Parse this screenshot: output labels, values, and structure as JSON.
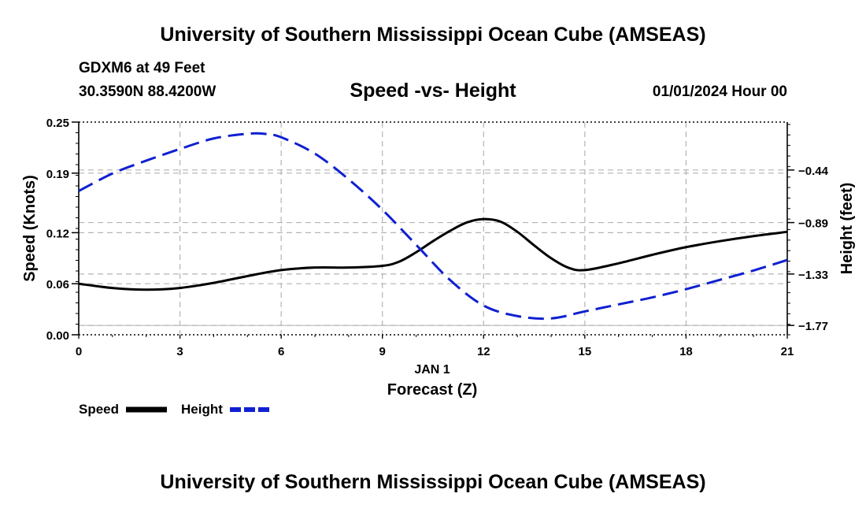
{
  "header": {
    "title": "University of Southern Mississippi Ocean Cube (AMSEAS)",
    "station": "GDXM6 at 49 Feet",
    "location": "30.3590N  88.4200W",
    "datetime": "01/01/2024 Hour 00"
  },
  "footer": {
    "title": "University of Southern Mississippi Ocean Cube (AMSEAS)"
  },
  "colors": {
    "speed": "#000000",
    "height": "#1020d0",
    "grid": "#b4b4b4"
  },
  "chart_data": {
    "type": "line",
    "title": "Speed -vs- Height",
    "xlabel": "Forecast (Z)",
    "x_date_label": "JAN 1",
    "ylabel": "Speed (Knots)",
    "y2label": "Height (feet)",
    "xlim": [
      0,
      21
    ],
    "ylim": [
      0,
      0.25
    ],
    "y2lim": [
      -1.85,
      -0.03
    ],
    "x_ticks": [
      0,
      3,
      6,
      9,
      12,
      15,
      18,
      21
    ],
    "x_tick_labels": [
      "0",
      "3",
      "6",
      "9",
      "12",
      "15",
      "18",
      "21"
    ],
    "y_ticks": [
      0,
      0.06,
      0.12,
      0.19,
      0.25
    ],
    "y_tick_labels": [
      "0.00",
      "0.06",
      "0.12",
      "0.19",
      "0.25"
    ],
    "y2_ticks": [
      -0.44,
      -0.89,
      -1.33,
      -1.77
    ],
    "y2_tick_labels": [
      "-0.44",
      "-0.89",
      "-1.33",
      "-1.77"
    ],
    "legend": {
      "placement": "bottom-left",
      "speed_label": "Speed",
      "height_label": "Height"
    },
    "series": [
      {
        "name": "Speed",
        "axis": "left",
        "style": "solid",
        "x": [
          0,
          1,
          2,
          3,
          4,
          5,
          6,
          7,
          8,
          9,
          9.5,
          10,
          10.5,
          11,
          11.5,
          12,
          12.5,
          13,
          13.5,
          14,
          14.5,
          15,
          16,
          17,
          18,
          19,
          20,
          21
        ],
        "values": [
          0.06,
          0.055,
          0.053,
          0.055,
          0.061,
          0.069,
          0.076,
          0.079,
          0.079,
          0.081,
          0.086,
          0.097,
          0.11,
          0.122,
          0.132,
          0.136,
          0.133,
          0.121,
          0.105,
          0.09,
          0.079,
          0.076,
          0.084,
          0.094,
          0.103,
          0.11,
          0.116,
          0.121
        ]
      },
      {
        "name": "Height",
        "axis": "right",
        "style": "dashed",
        "x": [
          0,
          1,
          2,
          3,
          4,
          5,
          5.5,
          6,
          7,
          8,
          9,
          10,
          11,
          12,
          13,
          14,
          15,
          16,
          17,
          18,
          19,
          20,
          21
        ],
        "values": [
          -0.62,
          -0.47,
          -0.36,
          -0.26,
          -0.17,
          -0.13,
          -0.13,
          -0.16,
          -0.3,
          -0.52,
          -0.78,
          -1.08,
          -1.38,
          -1.6,
          -1.69,
          -1.71,
          -1.65,
          -1.59,
          -1.53,
          -1.46,
          -1.38,
          -1.3,
          -1.21
        ]
      }
    ]
  }
}
